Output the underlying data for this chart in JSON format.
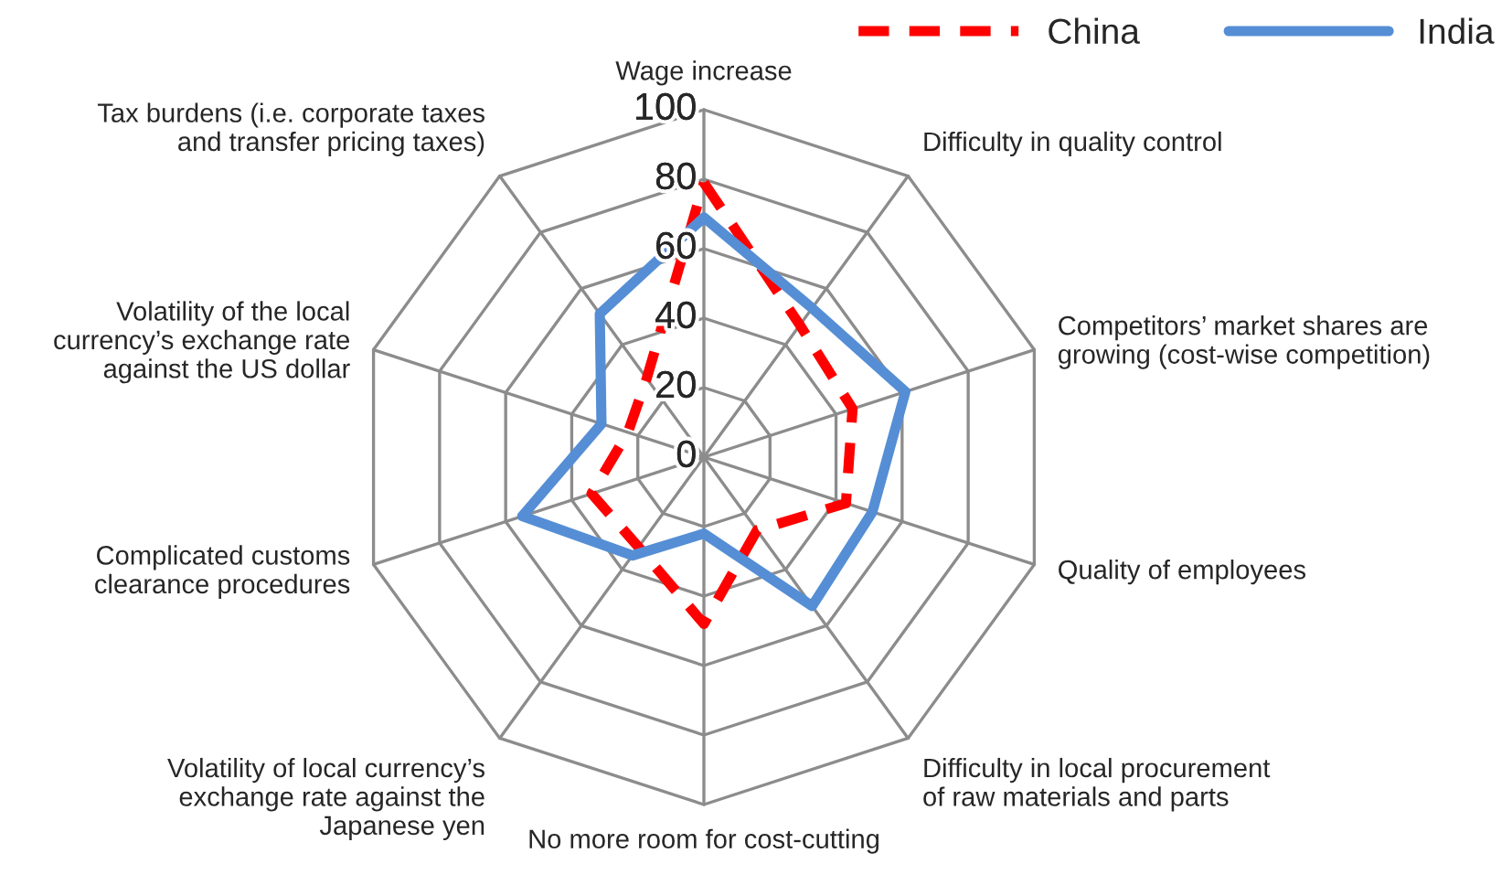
{
  "chart_data": {
    "type": "radar",
    "categories": [
      "Wage increase",
      "Difficulty in quality control",
      "Competitors’ market shares are\ngrowing (cost-wise competition)",
      "Quality of employees",
      "Difficulty in local procurement\nof raw materials and parts",
      "No more room for cost-cutting",
      "Volatility of local currency’s\nexchange rate against the\nJapanese yen",
      "Complicated customs\nclearance procedures",
      "Volatility of the local\ncurrency’s exchange rate\nagainst the US dollar",
      "Tax burdens (i.e. corporate taxes\nand transfer pricing taxes)"
    ],
    "series": [
      {
        "name": "China",
        "color": "#ff0000",
        "line_style": "dashed",
        "values": [
          79,
          47,
          45,
          43,
          26,
          48,
          32,
          34,
          23,
          28
        ]
      },
      {
        "name": "India",
        "color": "#558ed5",
        "line_style": "solid",
        "values": [
          69,
          53,
          61,
          51,
          53,
          22,
          35,
          55,
          31,
          51
        ]
      }
    ],
    "ylim": [
      0,
      100
    ],
    "yticks": [
      0,
      20,
      40,
      60,
      80,
      100
    ],
    "grid": true,
    "legend": "top right",
    "marker": "none"
  }
}
